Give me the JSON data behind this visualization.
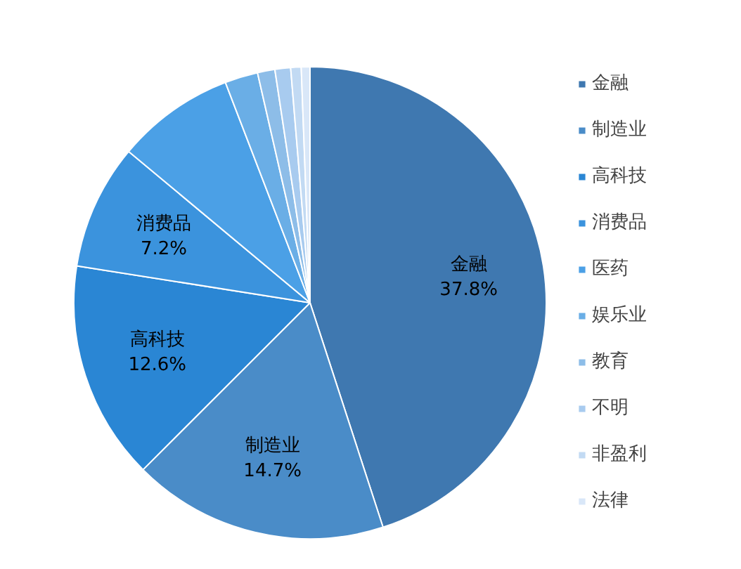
{
  "chart_data": {
    "type": "pie",
    "categories": [
      "金融",
      "制造业",
      "高科技",
      "消费品",
      "医药",
      "娱乐业",
      "教育",
      "不明",
      "非盈利",
      "法律"
    ],
    "values": [
      37.8,
      14.7,
      12.6,
      7.2,
      6.8,
      1.9,
      1.0,
      0.9,
      0.6,
      0.5
    ],
    "value_labels": [
      "37.8%",
      "14.7%",
      "12.6%",
      "7.2%",
      null,
      null,
      null,
      null,
      null,
      null
    ],
    "colors": [
      "#3f78b0",
      "#4a8cc8",
      "#2a86d4",
      "#3b93dd",
      "#4ba0e6",
      "#6aaee6",
      "#8dbde8",
      "#a8cbef",
      "#c2daf3",
      "#d9e7f8"
    ],
    "legend": "right"
  }
}
